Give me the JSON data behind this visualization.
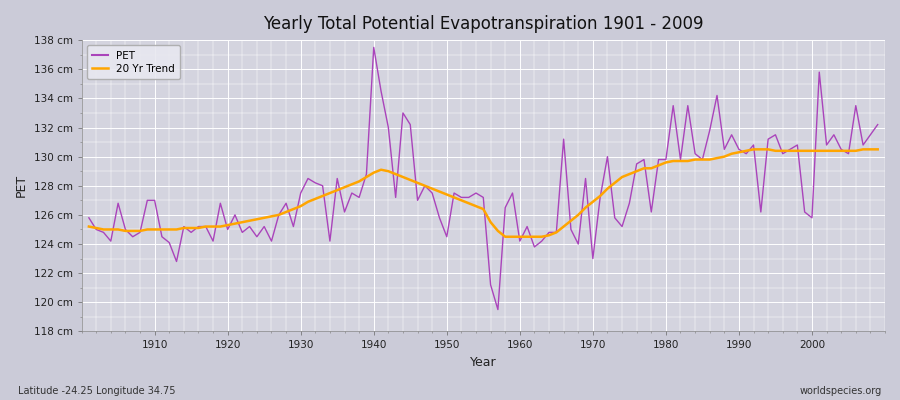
{
  "title": "Yearly Total Potential Evapotranspiration 1901 - 2009",
  "xlabel": "Year",
  "ylabel": "PET",
  "subtitle_left": "Latitude -24.25 Longitude 34.75",
  "subtitle_right": "worldspecies.org",
  "pet_color": "#AA44BB",
  "trend_color": "#FFA500",
  "fig_bg_color": "#E0E0E8",
  "plot_bg_color": "#D8D8E0",
  "ylim": [
    118,
    138
  ],
  "yticks": [
    118,
    120,
    122,
    124,
    126,
    128,
    130,
    132,
    134,
    136,
    138
  ],
  "xlim": [
    1900,
    2010
  ],
  "xticks": [
    1910,
    1920,
    1930,
    1940,
    1950,
    1960,
    1970,
    1980,
    1990,
    2000
  ],
  "years": [
    1901,
    1902,
    1903,
    1904,
    1905,
    1906,
    1907,
    1908,
    1909,
    1910,
    1911,
    1912,
    1913,
    1914,
    1915,
    1916,
    1917,
    1918,
    1919,
    1920,
    1921,
    1922,
    1923,
    1924,
    1925,
    1926,
    1927,
    1928,
    1929,
    1930,
    1931,
    1932,
    1933,
    1934,
    1935,
    1936,
    1937,
    1938,
    1939,
    1940,
    1941,
    1942,
    1943,
    1944,
    1945,
    1946,
    1947,
    1948,
    1949,
    1950,
    1951,
    1952,
    1953,
    1954,
    1955,
    1956,
    1957,
    1958,
    1959,
    1960,
    1961,
    1962,
    1963,
    1964,
    1965,
    1966,
    1967,
    1968,
    1969,
    1970,
    1971,
    1972,
    1973,
    1974,
    1975,
    1976,
    1977,
    1978,
    1979,
    1980,
    1981,
    1982,
    1983,
    1984,
    1985,
    1986,
    1987,
    1988,
    1989,
    1990,
    1991,
    1992,
    1993,
    1994,
    1995,
    1996,
    1997,
    1998,
    1999,
    2000,
    2001,
    2002,
    2003,
    2004,
    2005,
    2006,
    2007,
    2008,
    2009
  ],
  "pet_values": [
    125.8,
    125.0,
    124.8,
    124.2,
    126.8,
    125.0,
    124.5,
    124.8,
    127.0,
    127.0,
    124.5,
    124.1,
    122.8,
    125.2,
    124.8,
    125.2,
    125.2,
    124.2,
    126.8,
    125.0,
    126.0,
    124.8,
    125.2,
    124.5,
    125.2,
    124.2,
    126.0,
    126.8,
    125.2,
    127.5,
    128.5,
    128.2,
    128.0,
    124.2,
    128.5,
    126.2,
    127.5,
    127.2,
    128.8,
    137.5,
    134.5,
    132.0,
    127.2,
    133.0,
    132.2,
    127.0,
    128.0,
    127.5,
    125.8,
    124.5,
    127.5,
    127.2,
    127.2,
    127.5,
    127.2,
    121.2,
    119.5,
    126.5,
    127.5,
    124.2,
    125.2,
    123.8,
    124.2,
    124.8,
    124.8,
    131.2,
    125.0,
    124.0,
    128.5,
    123.0,
    127.2,
    130.0,
    125.8,
    125.2,
    126.8,
    129.5,
    129.8,
    126.2,
    129.8,
    129.8,
    133.5,
    129.8,
    133.5,
    130.2,
    129.8,
    131.8,
    134.2,
    130.5,
    131.5,
    130.5,
    130.2,
    130.8,
    126.2,
    131.2,
    131.5,
    130.2,
    130.5,
    130.8,
    126.2,
    125.8,
    135.8,
    130.8,
    131.5,
    130.5,
    130.2,
    133.5,
    130.8,
    131.5,
    132.2
  ],
  "trend_values": [
    125.2,
    125.1,
    125.0,
    125.0,
    125.0,
    124.9,
    124.9,
    124.9,
    125.0,
    125.0,
    125.0,
    125.0,
    125.0,
    125.1,
    125.1,
    125.1,
    125.2,
    125.2,
    125.2,
    125.3,
    125.4,
    125.5,
    125.6,
    125.7,
    125.8,
    125.9,
    126.0,
    126.2,
    126.4,
    126.6,
    126.9,
    127.1,
    127.3,
    127.5,
    127.7,
    127.9,
    128.1,
    128.3,
    128.6,
    128.9,
    129.1,
    129.0,
    128.8,
    128.6,
    128.4,
    128.2,
    128.0,
    127.8,
    127.6,
    127.4,
    127.2,
    127.0,
    126.8,
    126.6,
    126.4,
    125.5,
    124.9,
    124.5,
    124.5,
    124.5,
    124.5,
    124.5,
    124.5,
    124.6,
    124.8,
    125.2,
    125.6,
    126.0,
    126.5,
    126.9,
    127.3,
    127.8,
    128.2,
    128.6,
    128.8,
    129.0,
    129.2,
    129.2,
    129.4,
    129.6,
    129.7,
    129.7,
    129.7,
    129.8,
    129.8,
    129.8,
    129.9,
    130.0,
    130.2,
    130.3,
    130.4,
    130.5,
    130.5,
    130.5,
    130.4,
    130.4,
    130.4,
    130.4,
    130.4,
    130.4,
    130.4,
    130.4,
    130.4,
    130.4,
    130.4,
    130.4,
    130.5,
    130.5,
    130.5
  ]
}
